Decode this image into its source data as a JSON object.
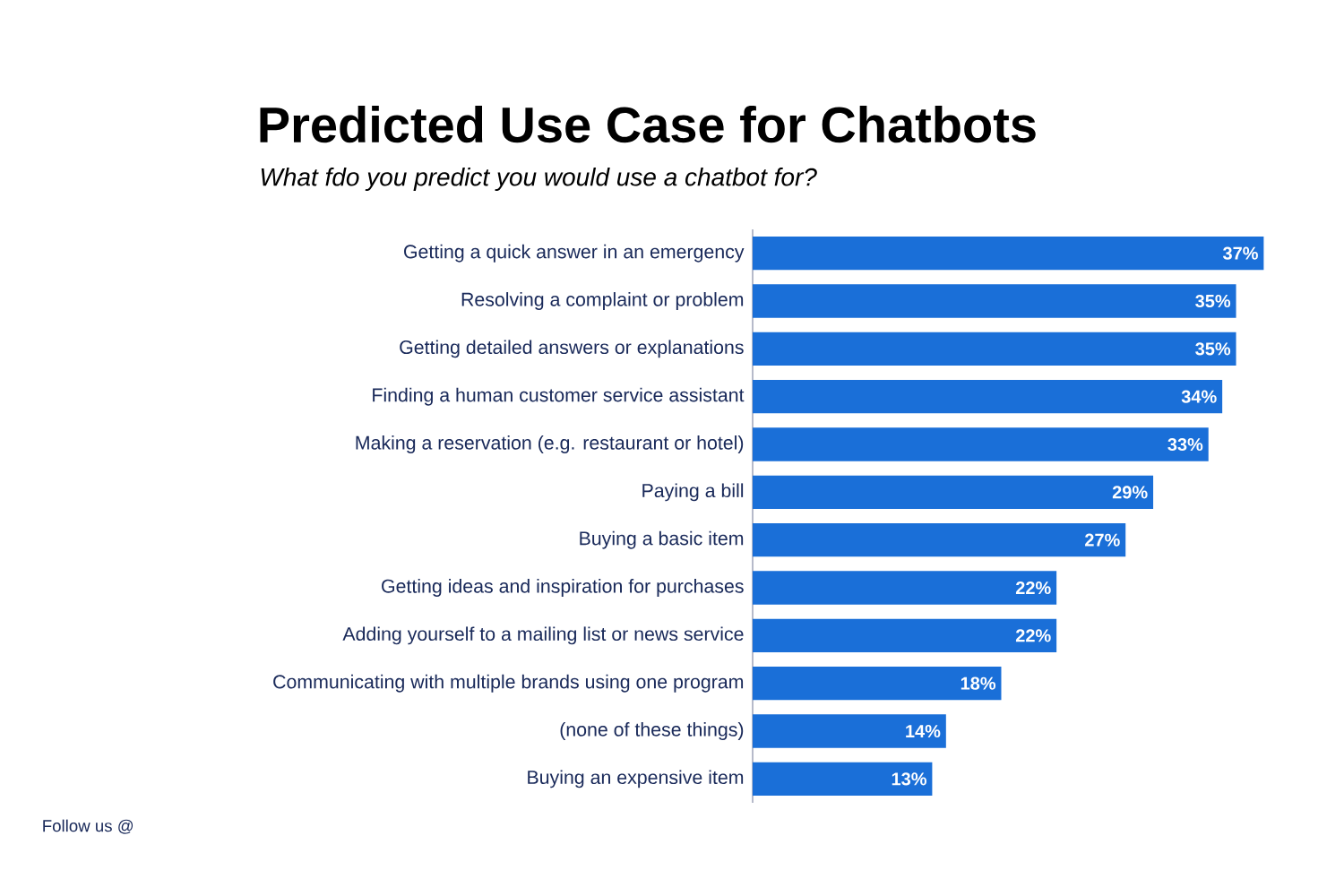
{
  "chart_data": {
    "type": "bar",
    "orientation": "horizontal",
    "title": "Predicted Use Case for Chatbots",
    "subtitle": "What fdo you predict you would use a chatbot for?",
    "categories": [
      "Getting a quick answer in an emergency",
      "Resolving a complaint or problem",
      "Getting detailed answers or explanations",
      "Finding a human customer service assistant",
      "Making a reservation (e.g. restaurant or hotel)",
      "Paying a bill",
      "Buying a basic item",
      "Getting ideas and inspiration for purchases",
      "Adding yourself to a mailing list or news service",
      "Communicating with multiple brands using one program",
      "(none of these things)",
      "Buying an expensive item"
    ],
    "values": [
      37,
      35,
      35,
      34,
      33,
      29,
      27,
      22,
      22,
      18,
      14,
      13
    ],
    "value_labels": [
      "37%",
      "35%",
      "35%",
      "34%",
      "33%",
      "29%",
      "27%",
      "22%",
      "22%",
      "18%",
      "14%",
      "13%"
    ],
    "color": "#1a6fd8",
    "tick_labels": "y",
    "annotations": [
      "Follow us @"
    ]
  }
}
